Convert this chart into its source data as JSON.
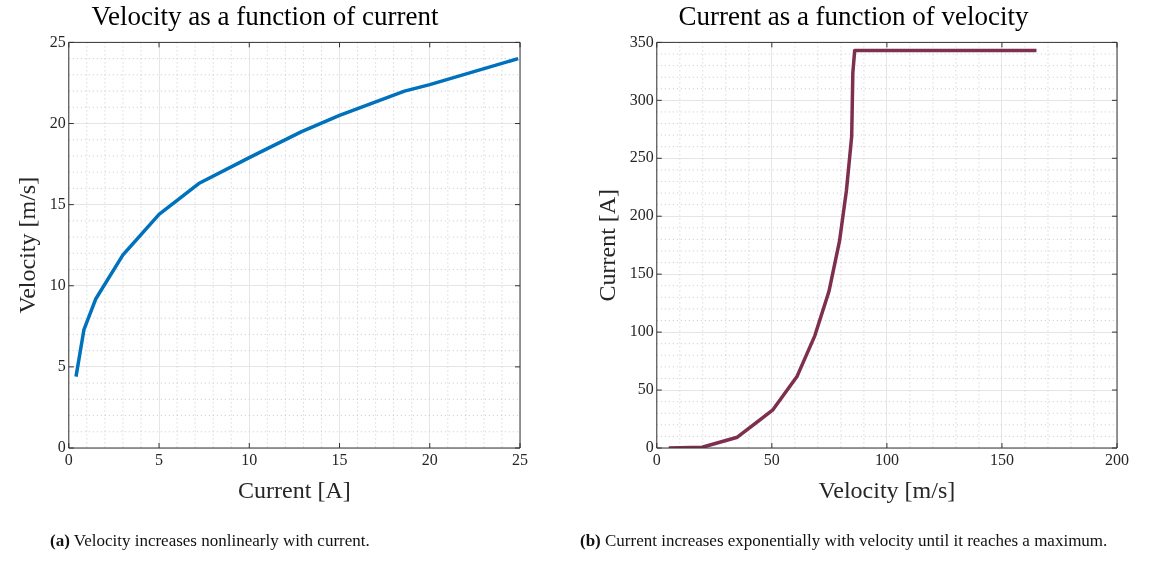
{
  "chart_data": [
    {
      "type": "line",
      "title": "Velocity as a function of current",
      "xlabel": "Current [A]",
      "ylabel": "Velocity [m/s]",
      "series": [
        {
          "color": "#0072bd",
          "x": [
            0.4,
            0.84,
            1.5,
            3.0,
            5.0,
            7.2,
            10,
            12.9,
            15,
            18.6,
            20,
            24.9
          ],
          "values": [
            4.4,
            7.3,
            9.2,
            11.9,
            14.4,
            16.3,
            17.9,
            19.5,
            20.5,
            22.0,
            22.4,
            24.0
          ]
        }
      ],
      "xlim": [
        0,
        25
      ],
      "xticks": [
        0,
        5,
        10,
        15,
        20,
        25
      ],
      "ylim": [
        0,
        25
      ],
      "yticks": [
        0,
        5,
        10,
        15,
        20,
        25
      ],
      "grid": true,
      "legend": false,
      "annotations": [
        "(a) Velocity increases nonlinearly with current."
      ]
    },
    {
      "type": "line",
      "title": "Current as a function of velocity",
      "xlabel": "Velocity [m/s]",
      "ylabel": "Current [A]",
      "series": [
        {
          "color": "#7e2f4e",
          "x": [
            5.2,
            19.7,
            35,
            50.3,
            61,
            68.7,
            74.8,
            79.4,
            82.4,
            84.7,
            85.2,
            86,
            165
          ],
          "values": [
            0,
            0.6,
            9.3,
            32.6,
            62,
            97,
            135,
            178.5,
            222,
            269,
            324,
            343,
            343
          ]
        }
      ],
      "xlim": [
        0,
        200
      ],
      "xticks": [
        0,
        50,
        100,
        150,
        200
      ],
      "ylim": [
        0,
        350
      ],
      "yticks": [
        0,
        50,
        100,
        150,
        200,
        250,
        300,
        350
      ],
      "grid": true,
      "legend": false,
      "annotations": [
        "(b) Current increases exponentially with velocity until it reaches a maximum."
      ]
    }
  ]
}
